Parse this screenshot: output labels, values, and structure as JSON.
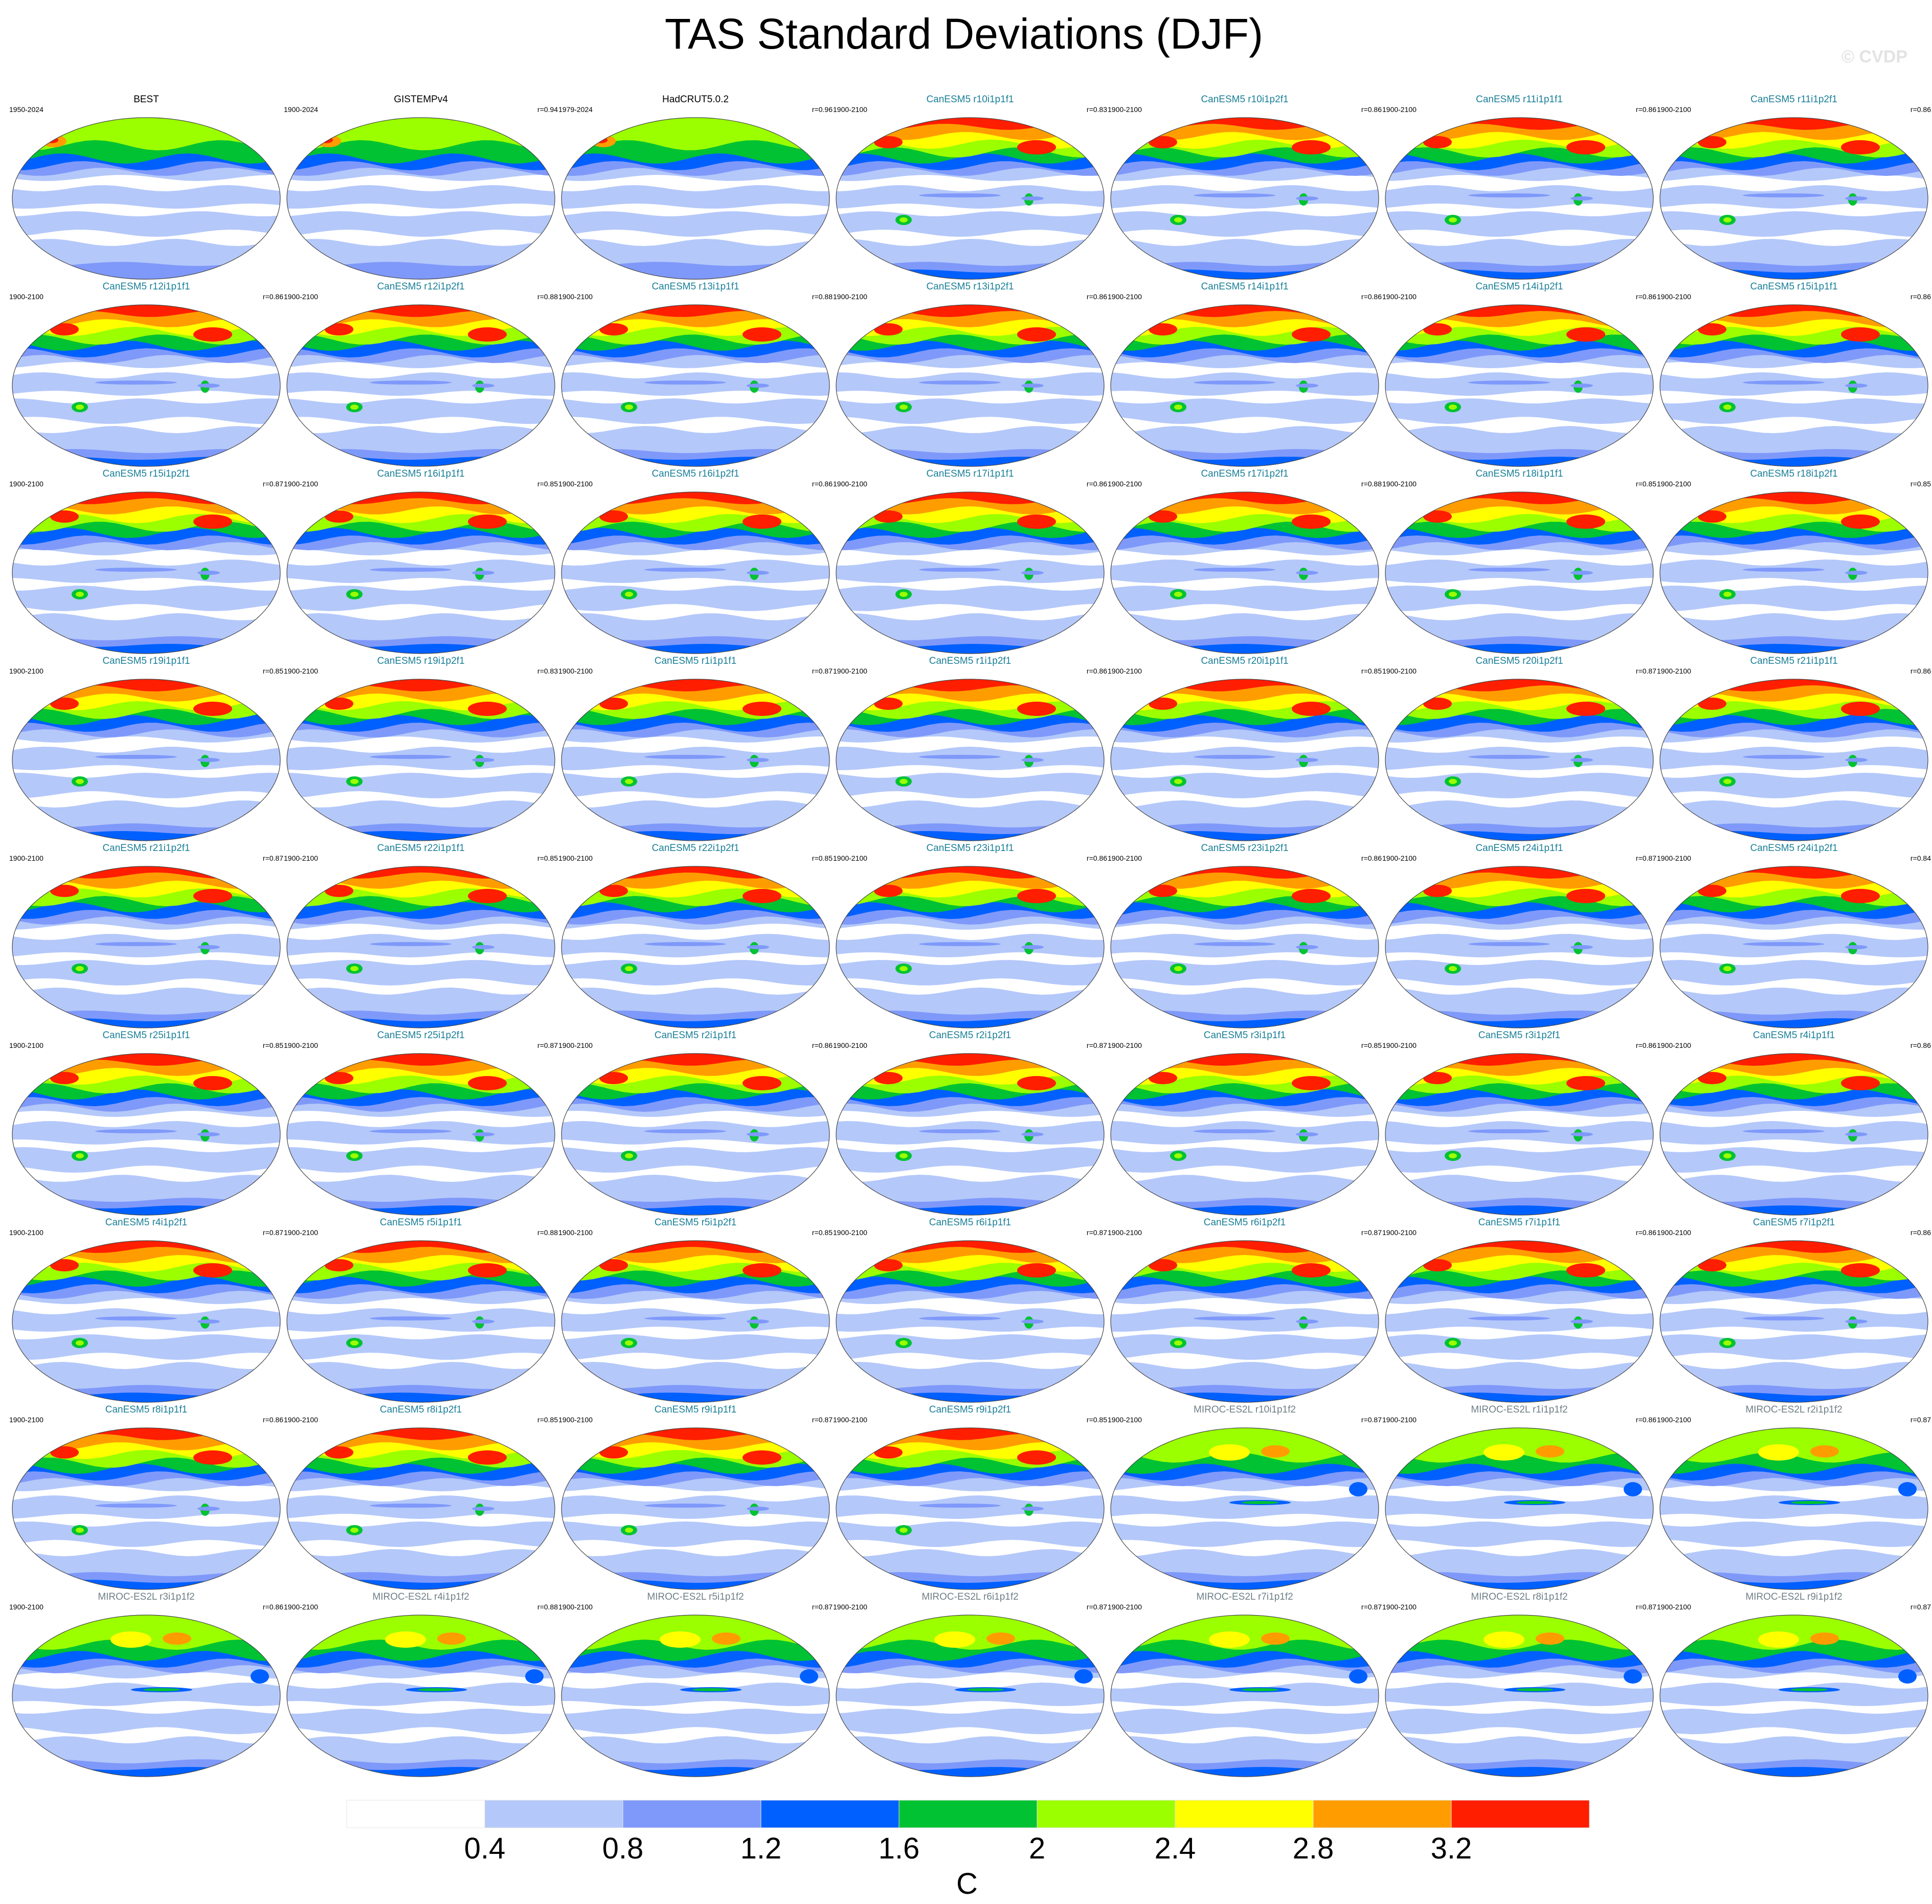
{
  "title": "TAS Standard Deviations (DJF)",
  "watermark": "© CVDP",
  "chart_data": {
    "type": "heatmap",
    "variable": "TAS",
    "season": "DJF",
    "projection": "Robinson",
    "units": "C",
    "colorbar": {
      "ticks": [
        "0.4",
        "0.8",
        "1.2",
        "1.6",
        "2",
        "2.4",
        "2.8",
        "3.2"
      ],
      "levels": [
        0.4,
        0.8,
        1.2,
        1.6,
        2.0,
        2.4,
        2.8,
        3.2
      ],
      "colors": [
        "#ffffff",
        "#b4c8fa",
        "#7f99fa",
        "#0060ff",
        "#00c232",
        "#9bff00",
        "#ffff00",
        "#ff9d00",
        "#ff1e00"
      ],
      "label": "C"
    },
    "panels": [
      {
        "name": "BEST",
        "years": "1950-2024",
        "r": "",
        "group": "obs"
      },
      {
        "name": "GISTEMPv4",
        "years": "1900-2024",
        "r": "r=0.94",
        "group": "obs"
      },
      {
        "name": "HadCRUT5.0.2",
        "years": "1979-2024",
        "r": "r=0.96",
        "group": "obs"
      },
      {
        "name": "CanESM5 r10i1p1f1",
        "years": "1900-2100",
        "r": "r=0.83",
        "group": "canesm"
      },
      {
        "name": "CanESM5 r10i1p2f1",
        "years": "1900-2100",
        "r": "r=0.86",
        "group": "canesm"
      },
      {
        "name": "CanESM5 r11i1p1f1",
        "years": "1900-2100",
        "r": "r=0.86",
        "group": "canesm"
      },
      {
        "name": "CanESM5 r11i1p2f1",
        "years": "1900-2100",
        "r": "r=0.86",
        "group": "canesm"
      },
      {
        "name": "CanESM5 r12i1p1f1",
        "years": "1900-2100",
        "r": "r=0.86",
        "group": "canesm"
      },
      {
        "name": "CanESM5 r12i1p2f1",
        "years": "1900-2100",
        "r": "r=0.88",
        "group": "canesm"
      },
      {
        "name": "CanESM5 r13i1p1f1",
        "years": "1900-2100",
        "r": "r=0.88",
        "group": "canesm"
      },
      {
        "name": "CanESM5 r13i1p2f1",
        "years": "1900-2100",
        "r": "r=0.86",
        "group": "canesm"
      },
      {
        "name": "CanESM5 r14i1p1f1",
        "years": "1900-2100",
        "r": "r=0.86",
        "group": "canesm"
      },
      {
        "name": "CanESM5 r14i1p2f1",
        "years": "1900-2100",
        "r": "r=0.86",
        "group": "canesm"
      },
      {
        "name": "CanESM5 r15i1p1f1",
        "years": "1900-2100",
        "r": "r=0.86",
        "group": "canesm"
      },
      {
        "name": "CanESM5 r15i1p2f1",
        "years": "1900-2100",
        "r": "r=0.87",
        "group": "canesm"
      },
      {
        "name": "CanESM5 r16i1p1f1",
        "years": "1900-2100",
        "r": "r=0.85",
        "group": "canesm"
      },
      {
        "name": "CanESM5 r16i1p2f1",
        "years": "1900-2100",
        "r": "r=0.86",
        "group": "canesm"
      },
      {
        "name": "CanESM5 r17i1p1f1",
        "years": "1900-2100",
        "r": "r=0.86",
        "group": "canesm"
      },
      {
        "name": "CanESM5 r17i1p2f1",
        "years": "1900-2100",
        "r": "r=0.88",
        "group": "canesm"
      },
      {
        "name": "CanESM5 r18i1p1f1",
        "years": "1900-2100",
        "r": "r=0.85",
        "group": "canesm"
      },
      {
        "name": "CanESM5 r18i1p2f1",
        "years": "1900-2100",
        "r": "r=0.85",
        "group": "canesm"
      },
      {
        "name": "CanESM5 r19i1p1f1",
        "years": "1900-2100",
        "r": "r=0.85",
        "group": "canesm"
      },
      {
        "name": "CanESM5 r19i1p2f1",
        "years": "1900-2100",
        "r": "r=0.83",
        "group": "canesm"
      },
      {
        "name": "CanESM5 r1i1p1f1",
        "years": "1900-2100",
        "r": "r=0.87",
        "group": "canesm"
      },
      {
        "name": "CanESM5 r1i1p2f1",
        "years": "1900-2100",
        "r": "r=0.86",
        "group": "canesm"
      },
      {
        "name": "CanESM5 r20i1p1f1",
        "years": "1900-2100",
        "r": "r=0.85",
        "group": "canesm"
      },
      {
        "name": "CanESM5 r20i1p2f1",
        "years": "1900-2100",
        "r": "r=0.87",
        "group": "canesm"
      },
      {
        "name": "CanESM5 r21i1p1f1",
        "years": "1900-2100",
        "r": "r=0.86",
        "group": "canesm"
      },
      {
        "name": "CanESM5 r21i1p2f1",
        "years": "1900-2100",
        "r": "r=0.87",
        "group": "canesm"
      },
      {
        "name": "CanESM5 r22i1p1f1",
        "years": "1900-2100",
        "r": "r=0.85",
        "group": "canesm"
      },
      {
        "name": "CanESM5 r22i1p2f1",
        "years": "1900-2100",
        "r": "r=0.85",
        "group": "canesm"
      },
      {
        "name": "CanESM5 r23i1p1f1",
        "years": "1900-2100",
        "r": "r=0.86",
        "group": "canesm"
      },
      {
        "name": "CanESM5 r23i1p2f1",
        "years": "1900-2100",
        "r": "r=0.86",
        "group": "canesm"
      },
      {
        "name": "CanESM5 r24i1p1f1",
        "years": "1900-2100",
        "r": "r=0.87",
        "group": "canesm"
      },
      {
        "name": "CanESM5 r24i1p2f1",
        "years": "1900-2100",
        "r": "r=0.84",
        "group": "canesm"
      },
      {
        "name": "CanESM5 r25i1p1f1",
        "years": "1900-2100",
        "r": "r=0.85",
        "group": "canesm"
      },
      {
        "name": "CanESM5 r25i1p2f1",
        "years": "1900-2100",
        "r": "r=0.87",
        "group": "canesm"
      },
      {
        "name": "CanESM5 r2i1p1f1",
        "years": "1900-2100",
        "r": "r=0.86",
        "group": "canesm"
      },
      {
        "name": "CanESM5 r2i1p2f1",
        "years": "1900-2100",
        "r": "r=0.87",
        "group": "canesm"
      },
      {
        "name": "CanESM5 r3i1p1f1",
        "years": "1900-2100",
        "r": "r=0.85",
        "group": "canesm"
      },
      {
        "name": "CanESM5 r3i1p2f1",
        "years": "1900-2100",
        "r": "r=0.86",
        "group": "canesm"
      },
      {
        "name": "CanESM5 r4i1p1f1",
        "years": "1900-2100",
        "r": "r=0.86",
        "group": "canesm"
      },
      {
        "name": "CanESM5 r4i1p2f1",
        "years": "1900-2100",
        "r": "r=0.87",
        "group": "canesm"
      },
      {
        "name": "CanESM5 r5i1p1f1",
        "years": "1900-2100",
        "r": "r=0.88",
        "group": "canesm"
      },
      {
        "name": "CanESM5 r5i1p2f1",
        "years": "1900-2100",
        "r": "r=0.85",
        "group": "canesm"
      },
      {
        "name": "CanESM5 r6i1p1f1",
        "years": "1900-2100",
        "r": "r=0.87",
        "group": "canesm"
      },
      {
        "name": "CanESM5 r6i1p2f1",
        "years": "1900-2100",
        "r": "r=0.87",
        "group": "canesm"
      },
      {
        "name": "CanESM5 r7i1p1f1",
        "years": "1900-2100",
        "r": "r=0.86",
        "group": "canesm"
      },
      {
        "name": "CanESM5 r7i1p2f1",
        "years": "1900-2100",
        "r": "r=0.86",
        "group": "canesm"
      },
      {
        "name": "CanESM5 r8i1p1f1",
        "years": "1900-2100",
        "r": "r=0.86",
        "group": "canesm"
      },
      {
        "name": "CanESM5 r8i1p2f1",
        "years": "1900-2100",
        "r": "r=0.85",
        "group": "canesm"
      },
      {
        "name": "CanESM5 r9i1p1f1",
        "years": "1900-2100",
        "r": "r=0.87",
        "group": "canesm"
      },
      {
        "name": "CanESM5 r9i1p2f1",
        "years": "1900-2100",
        "r": "r=0.85",
        "group": "canesm"
      },
      {
        "name": "MIROC-ES2L r10i1p1f2",
        "years": "1900-2100",
        "r": "r=0.87",
        "group": "miroc"
      },
      {
        "name": "MIROC-ES2L r1i1p1f2",
        "years": "1900-2100",
        "r": "r=0.86",
        "group": "miroc"
      },
      {
        "name": "MIROC-ES2L r2i1p1f2",
        "years": "1900-2100",
        "r": "r=0.87",
        "group": "miroc"
      },
      {
        "name": "MIROC-ES2L r3i1p1f2",
        "years": "1900-2100",
        "r": "r=0.86",
        "group": "miroc"
      },
      {
        "name": "MIROC-ES2L r4i1p1f2",
        "years": "1900-2100",
        "r": "r=0.88",
        "group": "miroc"
      },
      {
        "name": "MIROC-ES2L r5i1p1f2",
        "years": "1900-2100",
        "r": "r=0.87",
        "group": "miroc"
      },
      {
        "name": "MIROC-ES2L r6i1p1f2",
        "years": "1900-2100",
        "r": "r=0.87",
        "group": "miroc"
      },
      {
        "name": "MIROC-ES2L r7i1p1f2",
        "years": "1900-2100",
        "r": "r=0.87",
        "group": "miroc"
      },
      {
        "name": "MIROC-ES2L r8i1p1f2",
        "years": "1900-2100",
        "r": "r=0.87",
        "group": "miroc"
      },
      {
        "name": "MIROC-ES2L r9i1p1f2",
        "years": "1900-2100",
        "r": "r=0.87",
        "group": "miroc"
      }
    ]
  }
}
